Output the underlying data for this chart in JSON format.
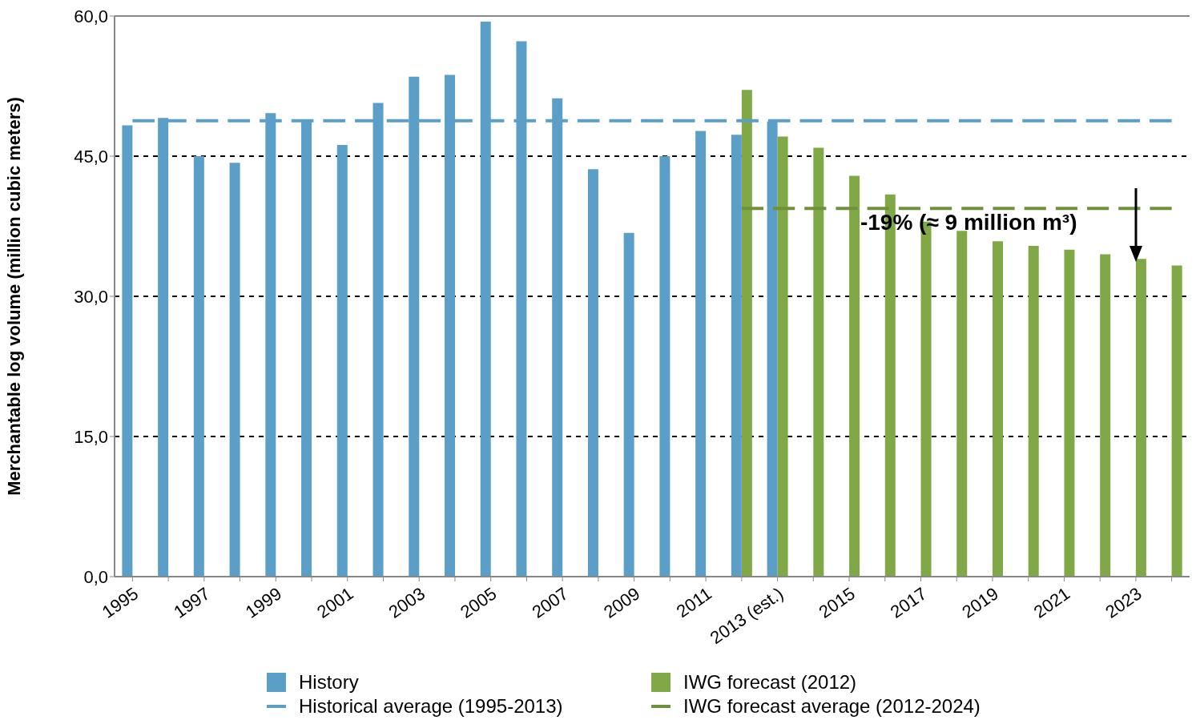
{
  "chart_data": {
    "type": "bar",
    "ylabel": "Merchantable log volume (million cubic meters)",
    "categories": [
      "1995",
      null,
      "1997",
      null,
      "1999",
      null,
      "2001",
      null,
      "2003",
      null,
      "2005",
      null,
      "2007",
      null,
      "2009",
      null,
      "2011",
      null,
      "2013 (est.)",
      null,
      "2015",
      null,
      "2017",
      null,
      "2019",
      null,
      "2021",
      null,
      "2023",
      null
    ],
    "series": [
      {
        "name": "History",
        "color": "#5b9fc8",
        "values": [
          48.3,
          49.1,
          45.0,
          44.3,
          49.6,
          48.9,
          46.2,
          50.7,
          53.5,
          53.7,
          59.4,
          57.3,
          51.2,
          43.6,
          36.8,
          45.0,
          47.7,
          47.3,
          48.7,
          null,
          null,
          null,
          null,
          null,
          null,
          null,
          null,
          null,
          null,
          null
        ]
      },
      {
        "name": "IWG forecast (2012)",
        "color": "#80a846",
        "values": [
          null,
          null,
          null,
          null,
          null,
          null,
          null,
          null,
          null,
          null,
          null,
          null,
          null,
          null,
          null,
          null,
          null,
          52.1,
          47.1,
          45.9,
          42.9,
          40.9,
          38.0,
          37.0,
          35.9,
          35.4,
          35.0,
          34.5,
          34.0,
          33.3
        ]
      },
      {
        "name": "Historical average (1995-2013)",
        "type": "line",
        "line_style": "dashed",
        "color": "#5b9fc8",
        "values": [
          48.8,
          48.8,
          48.8,
          48.8,
          48.8,
          48.8,
          48.8,
          48.8,
          48.8,
          48.8,
          48.8,
          48.8,
          48.8,
          48.8,
          48.8,
          48.8,
          48.8,
          48.8,
          48.8,
          48.8,
          48.8,
          48.8,
          48.8,
          48.8,
          48.8,
          48.8,
          48.8,
          48.8,
          48.8,
          48.8
        ]
      },
      {
        "name": "IWG forecast average (2012-2024)",
        "type": "line",
        "line_style": "dashed",
        "color": "#70913c",
        "values": [
          null,
          null,
          null,
          null,
          null,
          null,
          null,
          null,
          null,
          null,
          null,
          null,
          null,
          null,
          null,
          null,
          null,
          39.4,
          39.4,
          39.4,
          39.4,
          39.4,
          39.4,
          39.4,
          39.4,
          39.4,
          39.4,
          39.4,
          39.4,
          39.4
        ]
      }
    ],
    "ylim": [
      0,
      60
    ],
    "yticks": [
      {
        "value": 0,
        "label": "0,0"
      },
      {
        "value": 15,
        "label": "15,0"
      },
      {
        "value": 30,
        "label": "30,0"
      },
      {
        "value": 45,
        "label": "45,0"
      },
      {
        "value": 60,
        "label": "60,0"
      }
    ],
    "grid": "y",
    "legend": "bottom",
    "marker": "none",
    "annotations": [
      {
        "text": "-19% (≈ 9 million m³)",
        "x": "2019",
        "y": 39.4
      }
    ]
  }
}
